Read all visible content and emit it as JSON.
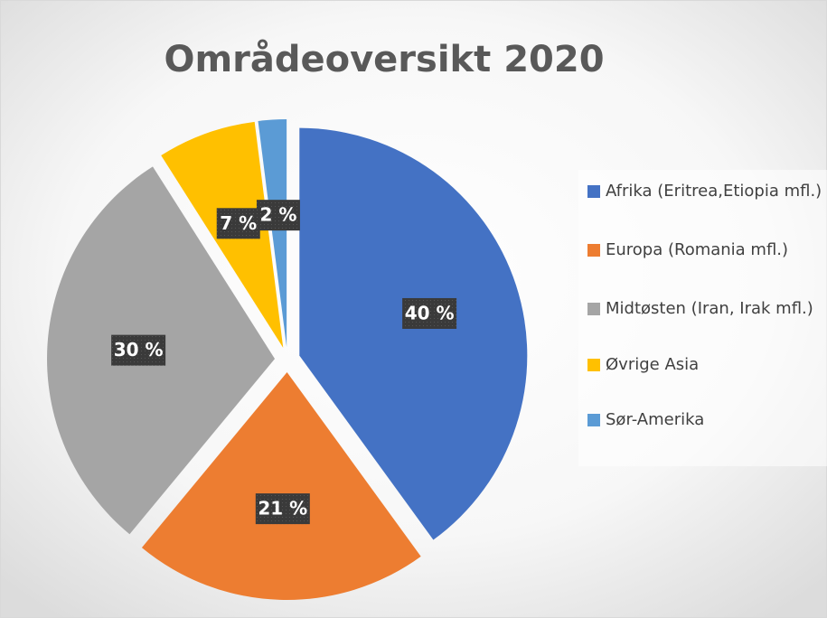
{
  "chart_data": {
    "type": "pie",
    "title": "Områdeoversikt 2020",
    "categories": [
      "Afrika (Eritrea,Etiopia mfl.)",
      "Europa (Romania mfl.)",
      "Midtøsten (Iran, Irak mfl.)",
      "Øvrige Asia",
      "Sør-Amerika"
    ],
    "values": [
      40,
      21,
      30,
      7,
      2
    ],
    "value_labels": [
      "40 %",
      "21 %",
      "30 %",
      "7 %",
      "2 %"
    ],
    "colors": [
      "#4472c4",
      "#ed7d31",
      "#a5a5a5",
      "#ffc000",
      "#5b9bd5"
    ],
    "legend": "right"
  }
}
